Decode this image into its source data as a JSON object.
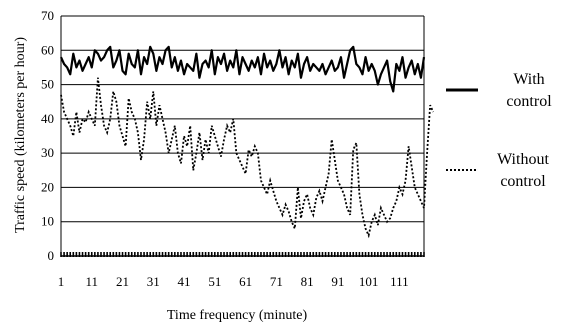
{
  "chart_data": {
    "type": "line",
    "title": "",
    "xlabel": "Time frequency (minute)",
    "ylabel": "Traffic speed (kilometers per hour)",
    "ylim": [
      0,
      70
    ],
    "xlim": [
      1,
      119
    ],
    "yticks": [
      0,
      10,
      20,
      30,
      40,
      50,
      60,
      70
    ],
    "xticks": [
      1,
      11,
      21,
      31,
      41,
      51,
      61,
      71,
      81,
      91,
      101,
      111
    ],
    "grid": "horizontal",
    "legend_position": "right",
    "series": [
      {
        "name": "With control",
        "style": "solid",
        "color": "#000000",
        "values": [
          58,
          56,
          55,
          53,
          59,
          55,
          57,
          54,
          56,
          58,
          55,
          60,
          59,
          57,
          58,
          60,
          61,
          55,
          57,
          60,
          54,
          53,
          59,
          56,
          55,
          60,
          53,
          58,
          56,
          61,
          59,
          54,
          58,
          56,
          60,
          61,
          55,
          58,
          54,
          57,
          53,
          56,
          55,
          54,
          59,
          52,
          56,
          57,
          55,
          60,
          53,
          58,
          56,
          59,
          54,
          57,
          55,
          60,
          53,
          58,
          56,
          54,
          57,
          55,
          58,
          53,
          59,
          55,
          57,
          54,
          56,
          60,
          55,
          58,
          53,
          57,
          55,
          59,
          52,
          56,
          58,
          54,
          56,
          55,
          54,
          56,
          53,
          55,
          57,
          54,
          55,
          58,
          52,
          56,
          60,
          61,
          56,
          55,
          53,
          58,
          54,
          56,
          54,
          50,
          53,
          55,
          57,
          51,
          48,
          56,
          54,
          58,
          52,
          55,
          57,
          53,
          56,
          52,
          58
        ]
      },
      {
        "name": "Without control",
        "style": "dotted",
        "color": "#000000",
        "values": [
          47,
          42,
          40,
          38,
          35,
          42,
          36,
          40,
          39,
          42,
          40,
          38,
          52,
          44,
          38,
          36,
          40,
          48,
          45,
          38,
          35,
          32,
          46,
          42,
          40,
          36,
          28,
          34,
          45,
          40,
          48,
          38,
          44,
          40,
          36,
          30,
          34,
          38,
          30,
          27,
          35,
          32,
          38,
          25,
          30,
          36,
          28,
          34,
          30,
          38,
          35,
          32,
          29,
          34,
          38,
          36,
          40,
          30,
          28,
          26,
          24,
          31,
          29,
          32,
          30,
          22,
          20,
          18,
          22,
          19,
          16,
          14,
          12,
          15,
          13,
          10,
          8,
          20,
          11,
          16,
          18,
          14,
          12,
          17,
          19,
          16,
          20,
          24,
          34,
          28,
          22,
          20,
          18,
          14,
          12,
          31,
          33,
          18,
          12,
          8,
          6,
          10,
          12,
          9,
          14,
          12,
          10,
          11,
          14,
          16,
          20,
          18,
          22,
          32,
          26,
          20,
          18,
          16,
          14,
          30,
          44,
          42
        ]
      }
    ]
  },
  "legend": [
    {
      "line1": "With",
      "line2": "control"
    },
    {
      "line1": "Without",
      "line2": "control"
    }
  ]
}
